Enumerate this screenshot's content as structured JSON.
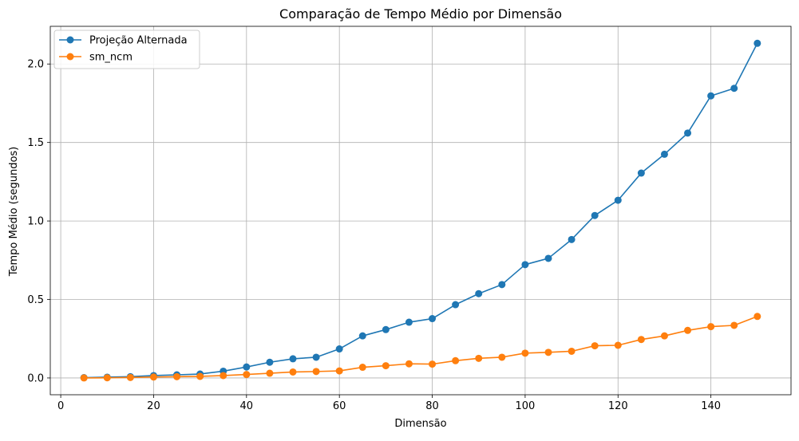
{
  "chart_data": {
    "type": "line",
    "title": "Comparação de Tempo Médio por Dimensão",
    "xlabel": "Dimensão",
    "ylabel": "Tempo Médio (segundos)",
    "x": [
      5,
      10,
      15,
      20,
      25,
      30,
      35,
      40,
      45,
      50,
      55,
      60,
      65,
      70,
      75,
      80,
      85,
      90,
      95,
      100,
      105,
      110,
      115,
      120,
      125,
      130,
      135,
      140,
      145,
      150
    ],
    "xlim": [
      -2.25,
      157.25
    ],
    "ylim": [
      -0.107,
      2.24
    ],
    "xticks": [
      0,
      20,
      40,
      60,
      80,
      100,
      120,
      140
    ],
    "yticks": [
      0.0,
      0.5,
      1.0,
      1.5,
      2.0
    ],
    "ytick_labels": [
      "0.0",
      "0.5",
      "1.0",
      "1.5",
      "2.0"
    ],
    "grid": true,
    "legend_position": "top-left",
    "series": [
      {
        "name": "Projeção Alternada",
        "color": "#1f77b4",
        "marker": "circle",
        "values": [
          0.002,
          0.005,
          0.008,
          0.015,
          0.02,
          0.025,
          0.043,
          0.07,
          0.1,
          0.122,
          0.132,
          0.185,
          0.268,
          0.308,
          0.355,
          0.378,
          0.467,
          0.537,
          0.595,
          0.722,
          0.762,
          0.882,
          1.035,
          1.132,
          1.305,
          1.425,
          1.56,
          1.797,
          1.845,
          2.132
        ]
      },
      {
        "name": "sm_ncm",
        "color": "#ff7f0e",
        "marker": "circle",
        "values": [
          0.0,
          0.001,
          0.003,
          0.006,
          0.008,
          0.01,
          0.015,
          0.022,
          0.03,
          0.038,
          0.041,
          0.045,
          0.068,
          0.078,
          0.09,
          0.088,
          0.11,
          0.125,
          0.132,
          0.158,
          0.163,
          0.17,
          0.205,
          0.208,
          0.245,
          0.268,
          0.303,
          0.327,
          0.335,
          0.392
        ]
      }
    ]
  }
}
